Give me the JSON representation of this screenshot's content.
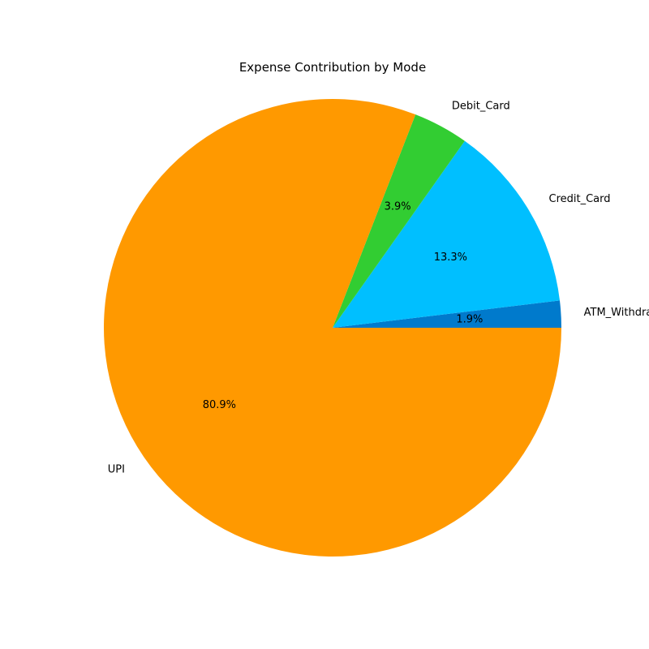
{
  "chart_data": {
    "type": "pie",
    "title": "Expense Contribution by Mode",
    "start_angle_deg": 0,
    "direction": "counterclockwise",
    "slices": [
      {
        "label": "ATM_Withdrawal",
        "value": 1.9,
        "pct_label": "1.9%",
        "color": "#007acc"
      },
      {
        "label": "Credit_Card",
        "value": 13.3,
        "pct_label": "13.3%",
        "color": "#00bfff"
      },
      {
        "label": "Debit_Card",
        "value": 3.9,
        "pct_label": "3.9%",
        "color": "#32cd32"
      },
      {
        "label": "UPI",
        "value": 80.9,
        "pct_label": "80.9%",
        "color": "#ff9900"
      }
    ]
  }
}
